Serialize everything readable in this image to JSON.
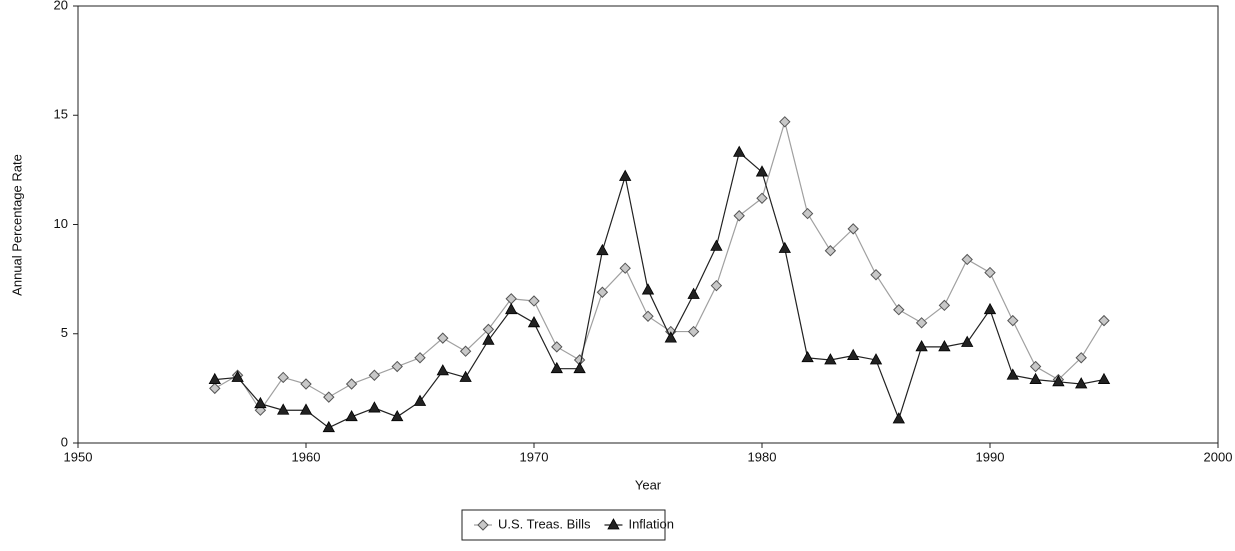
{
  "chart_data": {
    "type": "line",
    "x_label": "Year",
    "y_label": "Annual Percentage Rate",
    "x": [
      1956,
      1957,
      1958,
      1959,
      1960,
      1961,
      1962,
      1963,
      1964,
      1965,
      1966,
      1967,
      1968,
      1969,
      1970,
      1971,
      1972,
      1973,
      1974,
      1975,
      1976,
      1977,
      1978,
      1979,
      1980,
      1981,
      1982,
      1983,
      1984,
      1985,
      1986,
      1987,
      1988,
      1989,
      1990,
      1991,
      1992,
      1993,
      1994,
      1995
    ],
    "series": [
      {
        "name": "U.S. Treas. Bills",
        "color": "#a0a0a0",
        "marker": "diamond",
        "values": [
          2.5,
          3.1,
          1.5,
          3.0,
          2.7,
          2.1,
          2.7,
          3.1,
          3.5,
          3.9,
          4.8,
          4.2,
          5.2,
          6.6,
          6.5,
          4.4,
          3.8,
          6.9,
          8.0,
          5.8,
          5.1,
          5.1,
          7.2,
          10.4,
          11.2,
          14.7,
          10.5,
          8.8,
          9.8,
          7.7,
          6.1,
          5.5,
          6.3,
          8.4,
          7.8,
          5.6,
          3.5,
          2.9,
          3.9,
          5.6
        ]
      },
      {
        "name": "Inflation",
        "color": "#222222",
        "marker": "triangle",
        "values": [
          2.9,
          3.0,
          1.8,
          1.5,
          1.5,
          0.7,
          1.2,
          1.6,
          1.2,
          1.9,
          3.3,
          3.0,
          4.7,
          6.1,
          5.5,
          3.4,
          3.4,
          8.8,
          12.2,
          7.0,
          4.8,
          6.8,
          9.0,
          13.3,
          12.4,
          8.9,
          3.9,
          3.8,
          4.0,
          3.8,
          1.1,
          4.4,
          4.4,
          4.6,
          6.1,
          3.1,
          2.9,
          2.8,
          2.7,
          2.9
        ]
      }
    ],
    "xlim": [
      1950,
      2000
    ],
    "xticks": [
      1950,
      1960,
      1970,
      1980,
      1990,
      2000
    ],
    "ylim": [
      0,
      20
    ],
    "yticks": [
      0,
      5,
      10,
      15,
      20
    ],
    "grid": false,
    "legend": "bottom"
  }
}
